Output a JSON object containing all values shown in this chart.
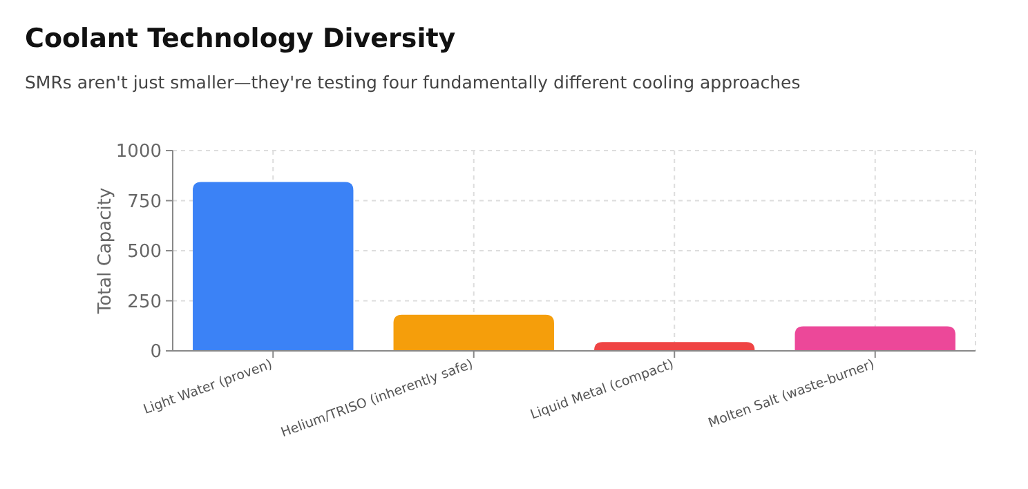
{
  "chart_data": {
    "type": "bar",
    "title": "Coolant Technology Diversity",
    "subtitle": "SMRs aren't just smaller—they're testing four fundamentally different cooling approaches",
    "ylabel": "Total Capacity",
    "categories": [
      "Light Water (proven)",
      "Helium/TRISO (inherently safe)",
      "Liquid Metal (compact)",
      "Molten Salt (waste-burner)"
    ],
    "values": [
      843,
      180,
      44,
      122
    ],
    "colors": [
      "#3b82f6",
      "#f59e0b",
      "#ef4444",
      "#ec4899"
    ],
    "ylim": [
      0,
      1000
    ],
    "yticks": [
      0,
      250,
      500,
      750,
      1000
    ],
    "grid": true
  }
}
